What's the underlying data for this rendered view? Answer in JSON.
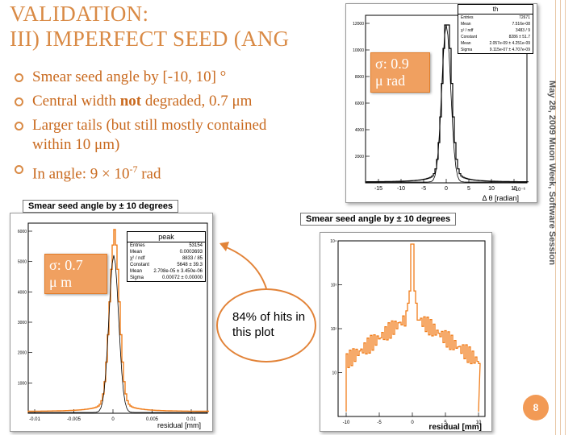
{
  "slide": {
    "title_line1": "VALIDATION:",
    "title_line2": "III) IMPERFECT SEED (ANG",
    "bullets": [
      {
        "pre": "Smear seed angle by [-10, 10] °",
        "bold": "",
        "post": ""
      },
      {
        "pre": "Central width ",
        "bold": "not",
        "post": " degraded, 0.7 μm"
      },
      {
        "pre": "Larger tails (but still mostly contained within 10 μm)",
        "bold": "",
        "post": ""
      },
      {
        "pre": "In angle: 9 × 10",
        "sup": "-7",
        "post": " rad"
      }
    ],
    "side_text": "May 28, 2009     Muon Week, Software Session",
    "page_number": "8",
    "callout_text": "84% of hits in this plot"
  },
  "plot_angle": {
    "stats_title": "th",
    "stats": [
      [
        "Entries",
        "72671"
      ],
      [
        "Mean",
        "7.516e-08"
      ],
      [
        "χ² / ndf",
        "3483 / 9"
      ],
      [
        "Constant",
        "8286 ± 51.7"
      ],
      [
        "Mean",
        "2.057e-09 ± 4.251e-09"
      ],
      [
        "Sigma",
        "9.115e-07 ± 4.707e-09"
      ]
    ],
    "note_line1": "σ:  0.9",
    "note_line2": "μ rad",
    "xlabel": "Δ θ [radian]",
    "x_ticks": [
      "-15",
      "-10",
      "-5",
      "0",
      "5",
      "10",
      "15"
    ],
    "x_multiplier": "×10⁻⁶",
    "y_ticks": [
      "2000",
      "4000",
      "6000",
      "8000",
      "10000",
      "12000"
    ]
  },
  "plot_peak": {
    "title": "Smear seed angle by ± 10 degrees",
    "stats_title": "peak",
    "stats": [
      [
        "Entries",
        "53154"
      ],
      [
        "Mean",
        "0.0003693"
      ],
      [
        "χ² / ndf",
        "8833 / 85"
      ],
      [
        "Constant",
        "5648 ± 39.3"
      ],
      [
        "Mean",
        "2.708e-05 ± 3.450e-06"
      ],
      [
        "Sigma",
        "0.00072 ± 0.00000"
      ]
    ],
    "note_line1": "σ:  0.7",
    "note_line2": "μ m",
    "xlabel": "residual [mm]",
    "x_ticks": [
      "-0.01",
      "-0.005",
      "0",
      "0.005",
      "0.01"
    ],
    "y_ticks": [
      "1000",
      "2000",
      "3000",
      "4000",
      "5000",
      "6000"
    ]
  },
  "plot_log": {
    "title": "Smear seed angle by ± 10 degrees",
    "xlabel": "residual [mm]",
    "x_ticks": [
      "-10",
      "-5",
      "0",
      "5",
      "10"
    ],
    "y_ticks": [
      "10",
      "10²",
      "10³",
      "10⁴"
    ]
  },
  "colors": {
    "accent": "#d98a45",
    "histogram_orange": "#f07d1a",
    "fit_line": "#000000"
  }
}
